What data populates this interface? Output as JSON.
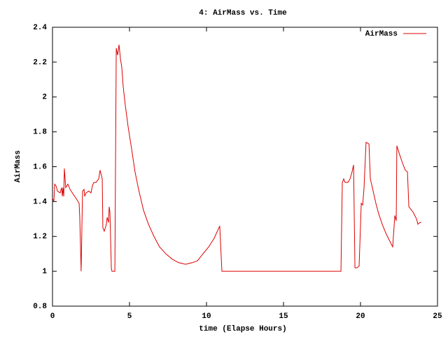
{
  "chart_data": {
    "type": "line",
    "title": "4: AirMass vs. Time",
    "xlabel": "time (Elapse Hours)",
    "ylabel": "AirMass",
    "x": [
      0,
      0.09,
      0.14,
      0.23,
      0.32,
      0.5,
      0.59,
      0.64,
      0.68,
      0.73,
      0.77,
      0.86,
      1.0,
      1.14,
      1.36,
      1.59,
      1.73,
      1.77,
      1.86,
      1.95,
      2.05,
      2.09,
      2.18,
      2.36,
      2.5,
      2.59,
      2.68,
      2.82,
      3.0,
      3.09,
      3.23,
      3.27,
      3.36,
      3.5,
      3.55,
      3.64,
      3.68,
      3.73,
      3.82,
      3.86,
      4.05,
      4.14,
      4.23,
      4.32,
      4.41,
      4.5,
      4.59,
      4.73,
      4.91,
      5.14,
      5.36,
      5.59,
      5.91,
      6.23,
      6.59,
      6.95,
      7.36,
      7.77,
      8.18,
      8.64,
      9.09,
      9.41,
      9.77,
      10.14,
      10.5,
      10.86,
      11.0,
      18.73,
      18.82,
      18.91,
      19.0,
      19.18,
      19.32,
      19.45,
      19.55,
      19.64,
      19.77,
      19.91,
      20.05,
      20.14,
      20.23,
      20.36,
      20.55,
      20.64,
      20.82,
      21.0,
      21.18,
      21.41,
      21.64,
      21.86,
      22.09,
      22.23,
      22.32,
      22.36,
      22.5,
      22.73,
      22.91,
      23.05,
      23.14,
      23.41,
      23.64,
      23.73,
      23.86,
      23.95
    ],
    "series": [
      {
        "name": "AirMass",
        "color": "#dd0000",
        "values": [
          1.42,
          1.4,
          1.5,
          1.49,
          1.46,
          1.45,
          1.48,
          1.43,
          1.48,
          1.43,
          1.59,
          1.48,
          1.5,
          1.47,
          1.44,
          1.41,
          1.39,
          1.31,
          1.0,
          1.46,
          1.47,
          1.43,
          1.45,
          1.46,
          1.45,
          1.49,
          1.51,
          1.51,
          1.53,
          1.58,
          1.53,
          1.25,
          1.23,
          1.27,
          1.31,
          1.28,
          1.37,
          1.34,
          1.02,
          1.0,
          1.0,
          2.28,
          2.24,
          2.3,
          2.22,
          2.17,
          2.06,
          1.95,
          1.83,
          1.7,
          1.57,
          1.47,
          1.35,
          1.27,
          1.2,
          1.14,
          1.1,
          1.07,
          1.05,
          1.04,
          1.05,
          1.06,
          1.1,
          1.14,
          1.19,
          1.26,
          1.0,
          1.0,
          1.51,
          1.53,
          1.51,
          1.51,
          1.53,
          1.57,
          1.61,
          1.02,
          1.02,
          1.03,
          1.39,
          1.38,
          1.48,
          1.74,
          1.73,
          1.53,
          1.46,
          1.39,
          1.33,
          1.27,
          1.22,
          1.18,
          1.14,
          1.32,
          1.29,
          1.72,
          1.68,
          1.62,
          1.58,
          1.57,
          1.37,
          1.34,
          1.3,
          1.27,
          1.28,
          1.28
        ]
      }
    ],
    "xlim": [
      0,
      25
    ],
    "xticks": [
      0,
      5,
      10,
      15,
      20,
      25
    ],
    "ylim": [
      0.8,
      2.4
    ],
    "yticks": [
      0.8,
      1,
      1.2,
      1.4,
      1.6,
      1.8,
      2,
      2.2,
      2.4
    ],
    "grid": false,
    "legend": "top right"
  }
}
